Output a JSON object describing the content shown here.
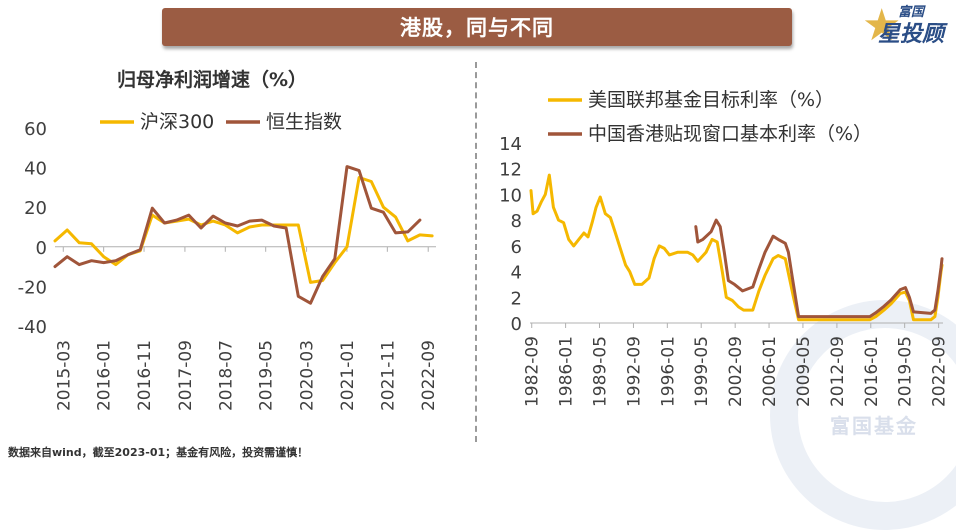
{
  "header": {
    "title": "港股，同与不同"
  },
  "brand": {
    "line1": "富国",
    "line2": "星投顾",
    "icon": "star-icon"
  },
  "watermark": {
    "text": "富国基金"
  },
  "footnote": "数据来自wind，截至2023-01；基金有风险，投资需谨慎！",
  "colors": {
    "title_bar": "#9b5c43",
    "gold": "#f5b800",
    "brown": "#a0553a",
    "axis_text": "#404040"
  },
  "chart_data": [
    {
      "type": "line",
      "title": "归母净利润增速（%）",
      "xlabel": "",
      "ylabel": "",
      "ylim": [
        -40,
        60
      ],
      "yticks": [
        "60",
        "40",
        "20",
        "0",
        "-20",
        "-40"
      ],
      "yticks_values": [
        60,
        40,
        20,
        0,
        -20,
        -40
      ],
      "xticks": [
        "2015-03",
        "2016-01",
        "2016-11",
        "2017-09",
        "2018-07",
        "2019-05",
        "2020-03",
        "2021-01",
        "2021-11",
        "2022-09"
      ],
      "x_range": [
        2015.0,
        2022.83
      ],
      "xticks_values": [
        2015.17,
        2016.0,
        2016.83,
        2017.67,
        2018.5,
        2019.33,
        2020.17,
        2021.0,
        2021.83,
        2022.67
      ],
      "series": [
        {
          "name": "沪深300",
          "color": "#f5b800",
          "points": [
            [
              2015.0,
              3
            ],
            [
              2015.25,
              8.5
            ],
            [
              2015.5,
              2
            ],
            [
              2015.75,
              1.5
            ],
            [
              2016.0,
              -5
            ],
            [
              2016.25,
              -9
            ],
            [
              2016.5,
              -4
            ],
            [
              2016.75,
              -2
            ],
            [
              2017.0,
              16
            ],
            [
              2017.25,
              12
            ],
            [
              2017.5,
              13
            ],
            [
              2017.75,
              14
            ],
            [
              2018.0,
              11
            ],
            [
              2018.25,
              13
            ],
            [
              2018.5,
              11
            ],
            [
              2018.75,
              7
            ],
            [
              2019.0,
              10
            ],
            [
              2019.25,
              11
            ],
            [
              2019.5,
              11
            ],
            [
              2019.75,
              11
            ],
            [
              2020.0,
              11
            ],
            [
              2020.25,
              -18
            ],
            [
              2020.5,
              -17
            ],
            [
              2020.75,
              -8
            ],
            [
              2021.0,
              0
            ],
            [
              2021.25,
              35
            ],
            [
              2021.5,
              33
            ],
            [
              2021.75,
              20
            ],
            [
              2022.0,
              15
            ],
            [
              2022.25,
              3
            ],
            [
              2022.5,
              6
            ],
            [
              2022.75,
              5.5
            ]
          ]
        },
        {
          "name": "恒生指数",
          "color": "#a0553a",
          "points": [
            [
              2015.0,
              -10
            ],
            [
              2015.25,
              -5
            ],
            [
              2015.5,
              -9
            ],
            [
              2015.75,
              -7
            ],
            [
              2016.0,
              -8
            ],
            [
              2016.25,
              -7
            ],
            [
              2016.5,
              -4
            ],
            [
              2016.75,
              -1.5
            ],
            [
              2017.0,
              19.5
            ],
            [
              2017.25,
              12
            ],
            [
              2017.5,
              13.5
            ],
            [
              2017.75,
              16
            ],
            [
              2018.0,
              9.5
            ],
            [
              2018.25,
              15.5
            ],
            [
              2018.5,
              12
            ],
            [
              2018.75,
              10.5
            ],
            [
              2019.0,
              13
            ],
            [
              2019.25,
              13.5
            ],
            [
              2019.5,
              10.5
            ],
            [
              2019.75,
              9.5
            ],
            [
              2020.0,
              -25
            ],
            [
              2020.25,
              -28.5
            ],
            [
              2020.5,
              -15
            ],
            [
              2020.75,
              -6
            ],
            [
              2021.0,
              40.5
            ],
            [
              2021.25,
              38.5
            ],
            [
              2021.5,
              19.5
            ],
            [
              2021.75,
              17.5
            ],
            [
              2022.0,
              7
            ],
            [
              2022.25,
              7.5
            ],
            [
              2022.5,
              13.5
            ]
          ]
        }
      ]
    },
    {
      "type": "line",
      "title": "",
      "xlabel": "",
      "ylabel": "",
      "ylim": [
        0,
        14
      ],
      "yticks": [
        "14",
        "12",
        "10",
        "8",
        "6",
        "4",
        "2",
        "0"
      ],
      "yticks_values": [
        14,
        12,
        10,
        8,
        6,
        4,
        2,
        0
      ],
      "xticks": [
        "1982-09",
        "1986-01",
        "1989-05",
        "1992-09",
        "1996-01",
        "1999-05",
        "2002-09",
        "2006-01",
        "2009-05",
        "2012-09",
        "2016-01",
        "2019-05",
        "2022-09"
      ],
      "x_range": [
        1982.5,
        2023.1
      ],
      "xticks_values": [
        1982.67,
        1986.0,
        1989.33,
        1992.67,
        1996.0,
        1999.33,
        2002.67,
        2006.0,
        2009.33,
        2012.67,
        2016.0,
        2019.33,
        2022.67
      ],
      "series": [
        {
          "name": "美国联邦基金目标利率（%）",
          "color": "#f5b800",
          "points": [
            [
              1982.6,
              10.3
            ],
            [
              1982.8,
              8.5
            ],
            [
              1983.2,
              8.7
            ],
            [
              1983.6,
              9.4
            ],
            [
              1984.0,
              10
            ],
            [
              1984.4,
              11.5
            ],
            [
              1984.8,
              9
            ],
            [
              1985.3,
              8
            ],
            [
              1985.8,
              7.8
            ],
            [
              1986.3,
              6.5
            ],
            [
              1986.8,
              6
            ],
            [
              1987.3,
              6.5
            ],
            [
              1987.8,
              7
            ],
            [
              1988.2,
              6.7
            ],
            [
              1988.6,
              7.8
            ],
            [
              1989.0,
              9
            ],
            [
              1989.4,
              9.8
            ],
            [
              1989.9,
              8.5
            ],
            [
              1990.4,
              8.2
            ],
            [
              1990.9,
              7
            ],
            [
              1991.3,
              6
            ],
            [
              1991.9,
              4.5
            ],
            [
              1992.3,
              4
            ],
            [
              1992.8,
              3
            ],
            [
              1993.5,
              3
            ],
            [
              1994.2,
              3.5
            ],
            [
              1994.7,
              5
            ],
            [
              1995.2,
              6
            ],
            [
              1995.7,
              5.8
            ],
            [
              1996.2,
              5.3
            ],
            [
              1997.0,
              5.5
            ],
            [
              1998.0,
              5.5
            ],
            [
              1998.5,
              5.3
            ],
            [
              1999.0,
              4.8
            ],
            [
              1999.8,
              5.5
            ],
            [
              2000.4,
              6.5
            ],
            [
              2000.9,
              6.3
            ],
            [
              2001.4,
              4
            ],
            [
              2001.8,
              2
            ],
            [
              2002.4,
              1.75
            ],
            [
              2003.0,
              1.25
            ],
            [
              2003.5,
              1
            ],
            [
              2004.4,
              1
            ],
            [
              2005.0,
              2.5
            ],
            [
              2005.6,
              3.7
            ],
            [
              2006.4,
              5
            ],
            [
              2006.9,
              5.25
            ],
            [
              2007.6,
              5
            ],
            [
              2008.0,
              3.5
            ],
            [
              2008.4,
              2
            ],
            [
              2008.9,
              0.25
            ],
            [
              2009.5,
              0.25
            ],
            [
              2015.9,
              0.25
            ],
            [
              2016.5,
              0.5
            ],
            [
              2017.3,
              1
            ],
            [
              2018.0,
              1.5
            ],
            [
              2018.9,
              2.3
            ],
            [
              2019.4,
              2.4
            ],
            [
              2019.8,
              1.75
            ],
            [
              2020.2,
              0.25
            ],
            [
              2021.9,
              0.25
            ],
            [
              2022.3,
              0.5
            ],
            [
              2022.6,
              2
            ],
            [
              2022.9,
              4
            ],
            [
              2023.0,
              4.5
            ]
          ]
        },
        {
          "name": "中国香港贴现窗口基本利率（%）",
          "color": "#a0553a",
          "points": [
            [
              1998.8,
              7.5
            ],
            [
              1999.0,
              6.3
            ],
            [
              1999.5,
              6.5
            ],
            [
              2000.3,
              7.1
            ],
            [
              2000.8,
              8
            ],
            [
              2001.2,
              7.5
            ],
            [
              2001.6,
              5.5
            ],
            [
              2002.0,
              3.3
            ],
            [
              2002.6,
              3
            ],
            [
              2003.4,
              2.5
            ],
            [
              2004.4,
              2.8
            ],
            [
              2005.0,
              4.2
            ],
            [
              2005.6,
              5.5
            ],
            [
              2006.4,
              6.75
            ],
            [
              2006.9,
              6.5
            ],
            [
              2007.6,
              6.2
            ],
            [
              2007.9,
              5.5
            ],
            [
              2008.3,
              3.5
            ],
            [
              2008.9,
              0.5
            ],
            [
              2009.5,
              0.5
            ],
            [
              2015.9,
              0.5
            ],
            [
              2016.5,
              0.8
            ],
            [
              2017.3,
              1.3
            ],
            [
              2018.0,
              1.8
            ],
            [
              2018.9,
              2.6
            ],
            [
              2019.4,
              2.75
            ],
            [
              2019.8,
              2
            ],
            [
              2020.2,
              0.86
            ],
            [
              2021.9,
              0.75
            ],
            [
              2022.3,
              1
            ],
            [
              2022.6,
              2.5
            ],
            [
              2022.9,
              4.3
            ],
            [
              2023.0,
              5
            ]
          ]
        }
      ]
    }
  ]
}
